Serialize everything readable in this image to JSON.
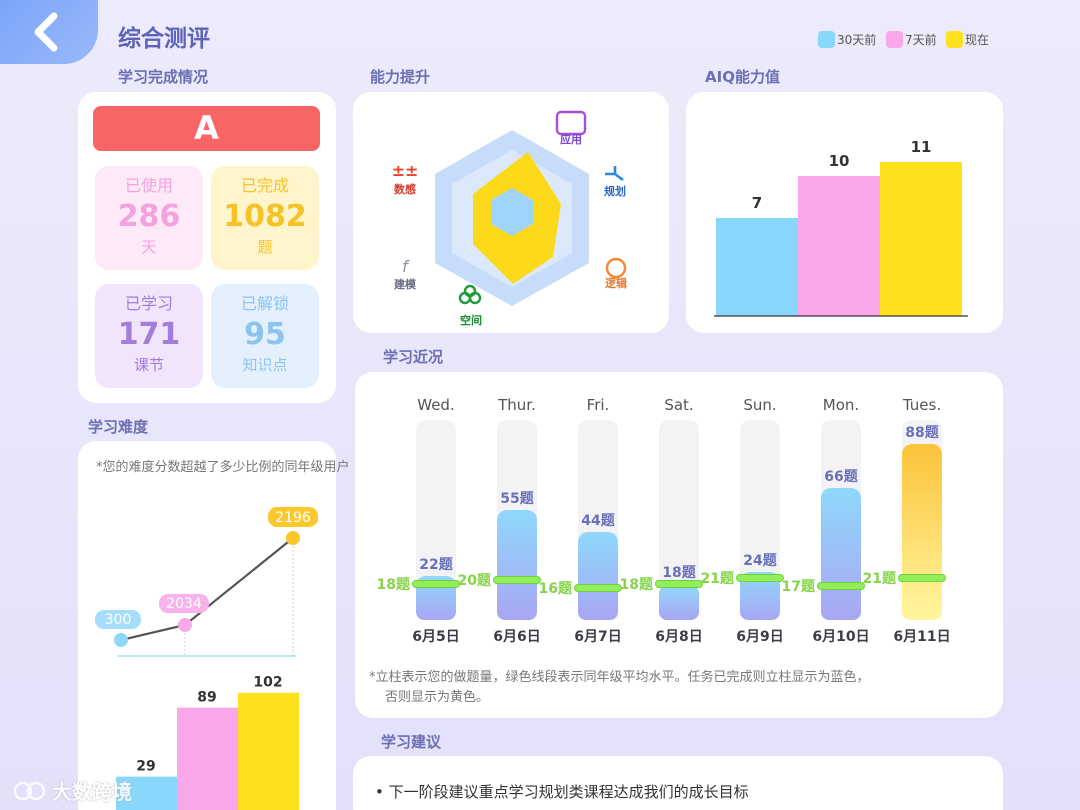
{
  "header": {
    "title": "综合测评",
    "legend": [
      {
        "label": "30天前",
        "color": "#89d8fb"
      },
      {
        "label": "7天前",
        "color": "#f9a6ea"
      },
      {
        "label": "现在",
        "color": "#ffe11f"
      }
    ]
  },
  "completion": {
    "title": "学习完成情况",
    "grade": "A",
    "stats": [
      {
        "label": "已使用",
        "value": "286",
        "unit": "天"
      },
      {
        "label": "已完成",
        "value": "1082",
        "unit": "题"
      },
      {
        "label": "已学习",
        "value": "171",
        "unit": "课节"
      },
      {
        "label": "已解锁",
        "value": "95",
        "unit": "知识点"
      }
    ]
  },
  "ability": {
    "title": "能力提升",
    "axes": [
      "应用",
      "规划",
      "逻辑",
      "空间",
      "建模",
      "数感"
    ]
  },
  "aiq": {
    "title": "AIQ能力值",
    "values": [
      7,
      10,
      11
    ]
  },
  "difficulty": {
    "title": "学习难度",
    "note": "*您的难度分数超越了多少比例的同年级用户",
    "line_values": [
      "300",
      "2034",
      "2196"
    ],
    "bar_values": [
      29,
      89,
      102
    ]
  },
  "recent": {
    "title": "学习近况",
    "days": [
      {
        "weekday": "Wed.",
        "date": "6月5日",
        "count": "22题",
        "avg": "18题",
        "value": 22,
        "avg_value": 18,
        "done": true
      },
      {
        "weekday": "Thur.",
        "date": "6月6日",
        "count": "55题",
        "avg": "20题",
        "value": 55,
        "avg_value": 20,
        "done": true
      },
      {
        "weekday": "Fri.",
        "date": "6月7日",
        "count": "44题",
        "avg": "16题",
        "value": 44,
        "avg_value": 16,
        "done": true
      },
      {
        "weekday": "Sat.",
        "date": "6月8日",
        "count": "18题",
        "avg": "18题",
        "value": 18,
        "avg_value": 18,
        "done": true
      },
      {
        "weekday": "Sun.",
        "date": "6月9日",
        "count": "24题",
        "avg": "21题",
        "value": 24,
        "avg_value": 21,
        "done": true
      },
      {
        "weekday": "Mon.",
        "date": "6月10日",
        "count": "66题",
        "avg": "17题",
        "value": 66,
        "avg_value": 17,
        "done": true
      },
      {
        "weekday": "Tues.",
        "date": "6月11日",
        "count": "88题",
        "avg": "21题",
        "value": 88,
        "avg_value": 21,
        "done": false
      }
    ],
    "note_line1": "*立柱表示您的做题量，绿色线段表示同年级平均水平。任务已完成则立柱显示为蓝色，",
    "note_line2": "否则显示为黄色。"
  },
  "advice": {
    "title": "学习建议",
    "item": "• 下一阶段建议重点学习规划类课程达成我们的成长目标"
  },
  "watermark": "大数跨境"
}
